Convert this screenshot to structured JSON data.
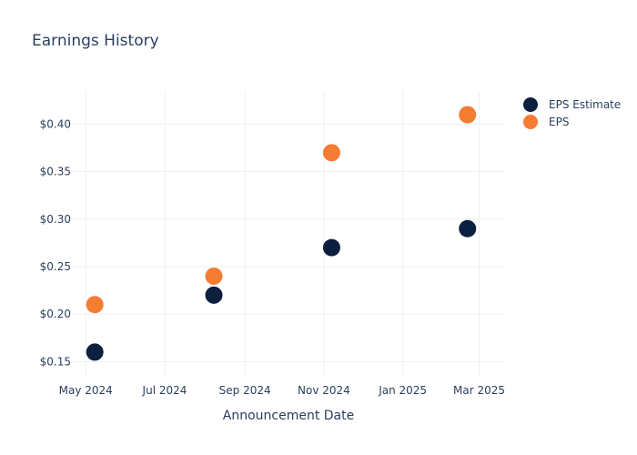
{
  "chart_data": {
    "type": "scatter",
    "title": "Earnings History",
    "xlabel": "Announcement Date",
    "ylabel": "",
    "x_ticks": [
      {
        "date": "2024-05-01",
        "label": "May 2024"
      },
      {
        "date": "2024-07-01",
        "label": "Jul 2024"
      },
      {
        "date": "2024-09-01",
        "label": "Sep 2024"
      },
      {
        "date": "2024-11-01",
        "label": "Nov 2024"
      },
      {
        "date": "2025-01-01",
        "label": "Jan 2025"
      },
      {
        "date": "2025-03-01",
        "label": "Mar 2025"
      }
    ],
    "y_ticks": [
      {
        "value": 0.15,
        "label": "$0.15"
      },
      {
        "value": 0.2,
        "label": "$0.20"
      },
      {
        "value": 0.25,
        "label": "$0.25"
      },
      {
        "value": 0.3,
        "label": "$0.30"
      },
      {
        "value": 0.35,
        "label": "$0.35"
      },
      {
        "value": 0.4,
        "label": "$0.40"
      }
    ],
    "xlim": [
      "2024-04-21",
      "2025-03-21"
    ],
    "ylim": [
      0.135,
      0.435
    ],
    "grid": true,
    "legend_position": "top-right",
    "series": [
      {
        "name": "EPS Estimate",
        "color": "#0b1f3f",
        "points": [
          {
            "x": "2024-05-08",
            "y": 0.16
          },
          {
            "x": "2024-08-08",
            "y": 0.22
          },
          {
            "x": "2024-11-07",
            "y": 0.27
          },
          {
            "x": "2025-02-20",
            "y": 0.29
          }
        ]
      },
      {
        "name": "EPS",
        "color": "#f57c33",
        "points": [
          {
            "x": "2024-05-08",
            "y": 0.21
          },
          {
            "x": "2024-08-08",
            "y": 0.24
          },
          {
            "x": "2024-11-07",
            "y": 0.37
          },
          {
            "x": "2025-02-20",
            "y": 0.41
          }
        ]
      }
    ]
  }
}
